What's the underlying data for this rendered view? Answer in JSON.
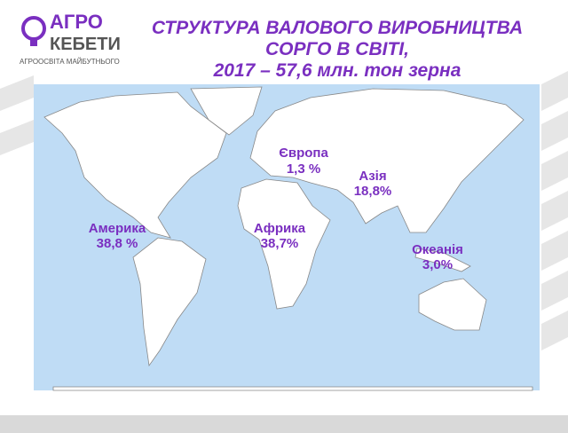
{
  "logo": {
    "line1": "АГРО",
    "line2": "КЕБЕТИ",
    "tagline": "АГРООСВІТА МАЙБУТНЬОГО"
  },
  "title": {
    "lines": [
      "СТРУКТУРА ВАЛОВОГО ВИРОБНИЦТВА",
      "СОРГО В СВІТІ,",
      "2017 – 57,6 млн. тон зерна"
    ]
  },
  "regions": [
    {
      "name": "Америка",
      "share": "38,8 %"
    },
    {
      "name": "Африка",
      "share": "38,7%"
    },
    {
      "name": "Європа",
      "share": "1,3 %"
    },
    {
      "name": "Азія",
      "share": "18,8%"
    },
    {
      "name": "Океанія",
      "share": "3,0%"
    }
  ]
}
